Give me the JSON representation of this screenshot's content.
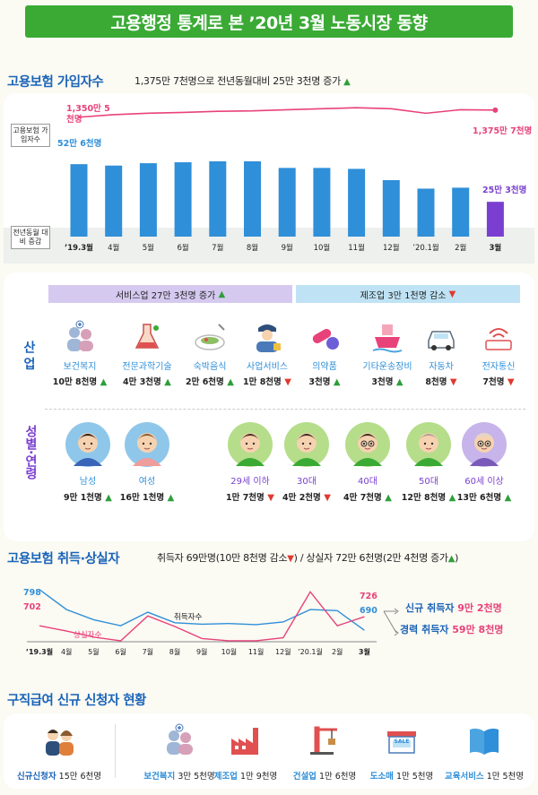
{
  "title": "고용행정 통계로 본 ’20년 3월 노동시장 동향",
  "insured": {
    "heading": "고용보험 가입자수",
    "summary": "1,375만 7천명으로 전년동월대비 25만 3천명 증가",
    "row_label_top": "고용보험 가입자수",
    "row_label_bottom": "전년동월 대비 증감",
    "start_total": "1,350만 5천명",
    "end_total": "1,375만 7천명",
    "start_change": "52만 6천명",
    "end_change": "25만 3천명",
    "months": [
      "’19.3월",
      "4월",
      "5월",
      "6월",
      "7월",
      "8월",
      "9월",
      "10월",
      "11월",
      "12월",
      "’20.1월",
      "2월",
      "3월"
    ],
    "bar_levels": [
      0.77,
      0.755,
      0.78,
      0.79,
      0.8,
      0.8,
      0.73,
      0.73,
      0.72,
      0.6,
      0.51,
      0.52,
      0.37
    ],
    "line_levels": [
      0.42,
      0.55,
      0.62,
      0.66,
      0.72,
      0.74,
      0.8,
      0.85,
      0.9,
      0.85,
      0.62,
      0.8,
      0.78
    ]
  },
  "industry": {
    "side_label": "산 업",
    "service_header": "서비스업 27만 3천명 증가",
    "manufacturing_header": "제조업 3만 1천명 감소",
    "items": [
      {
        "name": "보건복지",
        "value": "10만 8천명",
        "trend": "up",
        "icon": "health-welfare-icon"
      },
      {
        "name": "전문과학기술",
        "value": "4만 3천명",
        "trend": "up",
        "icon": "science-flask-icon"
      },
      {
        "name": "숙박음식",
        "value": "2만 6천명",
        "trend": "up",
        "icon": "food-plate-icon"
      },
      {
        "name": "사업서비스",
        "value": "1만 8천명",
        "trend": "down",
        "icon": "security-guard-icon"
      },
      {
        "name": "의약품",
        "value": "3천명",
        "trend": "up",
        "icon": "pill-icon"
      },
      {
        "name": "기타운송장비",
        "value": "3천명",
        "trend": "up",
        "icon": "ship-icon"
      },
      {
        "name": "자동차",
        "value": "8천명",
        "trend": "down",
        "icon": "car-icon"
      },
      {
        "name": "전자통신",
        "value": "7천명",
        "trend": "down",
        "icon": "wifi-router-icon"
      }
    ]
  },
  "demographic": {
    "side_label": "성별·연령",
    "items": [
      {
        "name": "남성",
        "value": "9만 1천명",
        "trend": "up",
        "icon": "man-avatar-icon"
      },
      {
        "name": "여성",
        "value": "16만 1천명",
        "trend": "up",
        "icon": "woman-avatar-icon"
      },
      {
        "name": "29세 이하",
        "value": "1만 7천명",
        "trend": "down",
        "icon": "young-man-avatar-icon"
      },
      {
        "name": "30대",
        "value": "4만 2천명",
        "trend": "down",
        "icon": "thirties-woman-avatar-icon"
      },
      {
        "name": "40대",
        "value": "4만 7천명",
        "trend": "up",
        "icon": "forties-man-avatar-icon"
      },
      {
        "name": "50대",
        "value": "12만 8천명",
        "trend": "up",
        "icon": "fifties-woman-avatar-icon"
      },
      {
        "name": "60세 이상",
        "value": "13만 6천명",
        "trend": "up",
        "icon": "senior-man-avatar-icon"
      }
    ]
  },
  "flows": {
    "heading": "고용보험 취득·상실자",
    "summary_acq": "취득자 69만명(10만 8천명 감소",
    "summary_loss": ") / 상실자 72만 6천명(2만 4천명 증가",
    "summary_end": ")",
    "acq_start": "798",
    "loss_start": "702",
    "acq_end": "690",
    "loss_end": "726",
    "acq_series_label": "취득자수",
    "loss_series_label": "상실자수",
    "new_label": "신규 취득자",
    "new_value": "9만 2천명",
    "exp_label": "경력 취득자",
    "exp_value": "59만 8천명",
    "acq_levels": [
      798,
      745,
      718,
      702,
      738,
      710,
      706,
      708,
      705,
      712,
      745,
      742,
      690
    ],
    "loss_levels": [
      702,
      688,
      672,
      662,
      728,
      700,
      668,
      662,
      662,
      670,
      792,
      702,
      726
    ]
  },
  "claims": {
    "heading": "구직급여 신규 신청자 현황",
    "items": [
      {
        "name": "신규신청자",
        "value": "15만 6천명",
        "icon": "applicants-icon"
      },
      {
        "name": "보건복지",
        "value": "3만 5천명",
        "icon": "health-welfare-icon"
      },
      {
        "name": "제조업",
        "value": "1만 9천명",
        "icon": "factory-icon"
      },
      {
        "name": "건설업",
        "value": "1만 6천명",
        "icon": "crane-icon"
      },
      {
        "name": "도소매",
        "value": "1만 5천명",
        "icon": "store-icon"
      },
      {
        "name": "교육서비스",
        "value": "1만 5천명",
        "icon": "book-icon"
      }
    ],
    "store_sign": "SALE"
  },
  "colors": {
    "green": "#3aaa35",
    "blue": "#2f8fd8",
    "pink": "#e8427a",
    "purple": "#7a3fd0",
    "up": "#2f9e3a",
    "down": "#e0392f"
  }
}
